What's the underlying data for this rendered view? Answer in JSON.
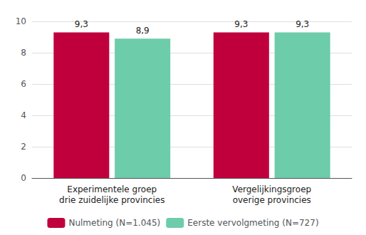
{
  "chart_data": {
    "type": "bar",
    "categories": [
      "Experimentele groep\ndrie zuidelijke provincies",
      "Vergelijkingsgroep\noverige provincies"
    ],
    "series": [
      {
        "name": "Nulmeting (N=1.045)",
        "color": "#C0003C",
        "values": [
          9.3,
          9.3
        ],
        "value_labels": [
          "9,3",
          "9,3"
        ]
      },
      {
        "name": "Eerste vervolgmeting (N=727)",
        "color": "#6DCCAA",
        "values": [
          8.9,
          9.3
        ],
        "value_labels": [
          "8,9",
          "9,3"
        ]
      }
    ],
    "ylim": [
      0,
      10
    ],
    "yticks": [
      0,
      2,
      4,
      6,
      8,
      10
    ],
    "grid": true,
    "legend": "bottom",
    "data_labels": true
  }
}
